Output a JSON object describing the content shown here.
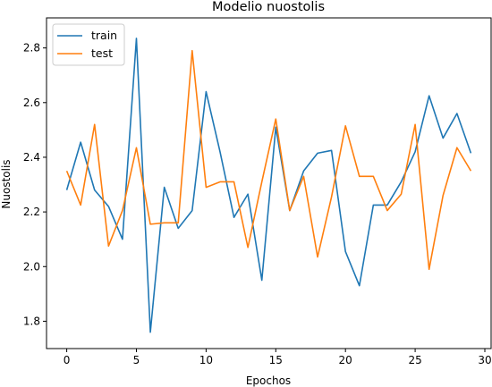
{
  "chart_data": {
    "type": "line",
    "title": "Modelio nuostolis",
    "xlabel": "Epochos",
    "ylabel": "Nuostolis",
    "xlim": [
      -1.45,
      30.45
    ],
    "ylim": [
      1.7,
      2.91
    ],
    "xticks": [
      0,
      5,
      10,
      15,
      20,
      25,
      30
    ],
    "yticks": [
      1.8,
      2.0,
      2.2,
      2.4,
      2.6,
      2.8
    ],
    "ytick_labels": [
      "1.8",
      "2.0",
      "2.2",
      "2.4",
      "2.6",
      "2.8"
    ],
    "grid": false,
    "legend_position": "top-left",
    "x": [
      0,
      1,
      2,
      3,
      4,
      5,
      6,
      7,
      8,
      9,
      10,
      11,
      12,
      13,
      14,
      15,
      16,
      17,
      18,
      19,
      20,
      21,
      22,
      23,
      24,
      25,
      26,
      27,
      28,
      29
    ],
    "series": [
      {
        "name": "train",
        "color": "#1f77b4",
        "values": [
          2.28,
          2.455,
          2.28,
          2.22,
          2.1,
          2.835,
          1.76,
          2.29,
          2.14,
          2.205,
          2.64,
          2.42,
          2.18,
          2.265,
          1.95,
          2.51,
          2.205,
          2.35,
          2.415,
          2.425,
          2.055,
          1.93,
          2.225,
          2.225,
          2.31,
          2.42,
          2.625,
          2.47,
          2.56,
          2.415
        ]
      },
      {
        "name": "test",
        "color": "#ff7f0e",
        "values": [
          2.35,
          2.225,
          2.52,
          2.075,
          2.205,
          2.435,
          2.155,
          2.16,
          2.16,
          2.79,
          2.29,
          2.31,
          2.31,
          2.07,
          2.31,
          2.54,
          2.205,
          2.33,
          2.035,
          2.255,
          2.515,
          2.33,
          2.33,
          2.205,
          2.265,
          2.52,
          1.99,
          2.26,
          2.435,
          2.35
        ]
      }
    ]
  }
}
